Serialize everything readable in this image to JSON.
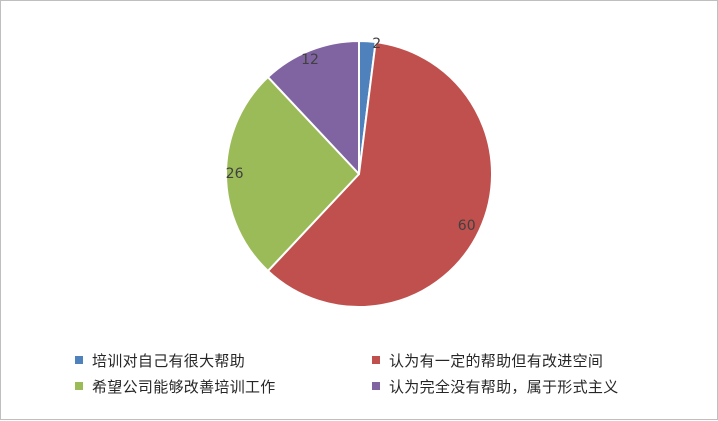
{
  "chart_data": {
    "type": "pie",
    "title": "",
    "categories": [
      "培训对自己有很大帮助",
      "认为有一定的帮助但有改进空间",
      "希望公司能够改善培训工作",
      "认为完全没有帮助，属于形式主义"
    ],
    "values": [
      2,
      60,
      26,
      12
    ],
    "data_labels": [
      "2",
      "60",
      "26",
      "12"
    ],
    "colors": [
      "#4f81bd",
      "#c0504d",
      "#9bbb59",
      "#8064a2"
    ],
    "start_angle_deg": 0,
    "direction": "clockwise",
    "legend_position": "bottom"
  }
}
